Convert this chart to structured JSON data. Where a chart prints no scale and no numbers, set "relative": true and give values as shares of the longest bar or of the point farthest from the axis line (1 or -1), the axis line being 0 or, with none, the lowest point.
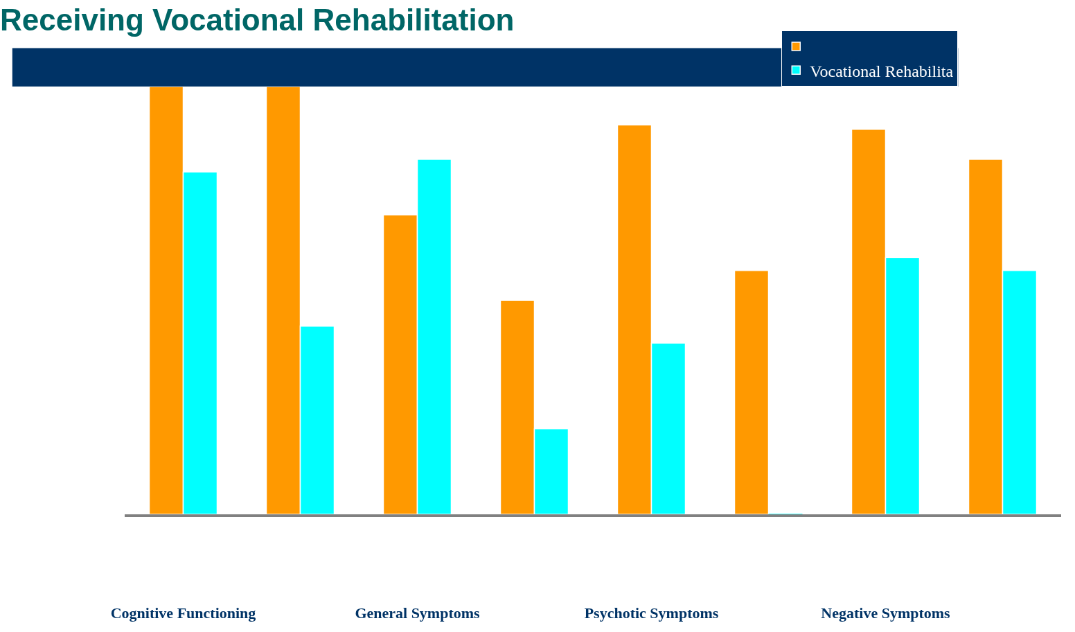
{
  "chart_data": {
    "type": "bar",
    "title": "Receiving Vocational Rehabilitation",
    "relative": true,
    "categories": [
      "Cognitive Functioning",
      null,
      "General Symptoms",
      null,
      "Psychotic Symptoms",
      null,
      "Negative Symptoms",
      null
    ],
    "series": [
      {
        "color": "#ff9900",
        "values": [
          1,
          1,
          0.7,
          0.5,
          0.91,
          0.57,
          0.9,
          0.83
        ]
      },
      {
        "name": "Vocational Rehabilita",
        "color": "#00ffff",
        "values": [
          0.8,
          0.44,
          0.83,
          0.2,
          0.4,
          0,
          0.6,
          0.57
        ]
      }
    ],
    "legend": "top right"
  }
}
